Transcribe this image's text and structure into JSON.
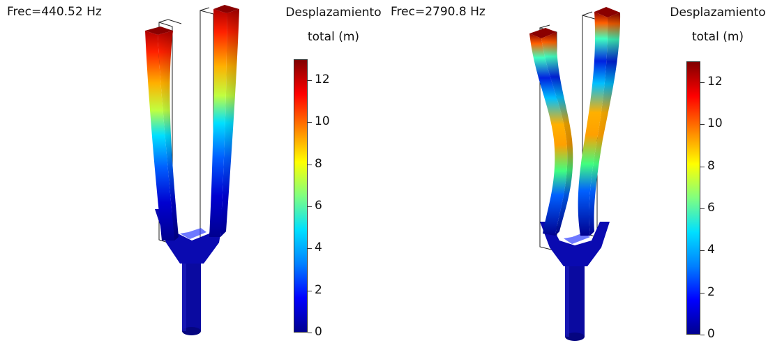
{
  "panels": [
    {
      "frequency_label": "Frec=440.52 Hz",
      "colorbar": {
        "title_line1": "Desplazamiento",
        "title_line2": "total (m)",
        "min": 0,
        "max": 13,
        "ticks": [
          "0",
          "2",
          "4",
          "6",
          "8",
          "10",
          "12"
        ]
      }
    },
    {
      "frequency_label": "Frec=2790.8 Hz",
      "colorbar": {
        "title_line1": "Desplazamiento",
        "title_line2": "total (m)",
        "min": 0,
        "max": 13,
        "ticks": [
          "0",
          "2",
          "4",
          "6",
          "8",
          "10",
          "12"
        ]
      }
    }
  ],
  "colors": {
    "low": "#00008f",
    "mid": "#80ff80",
    "high": "#800000"
  }
}
